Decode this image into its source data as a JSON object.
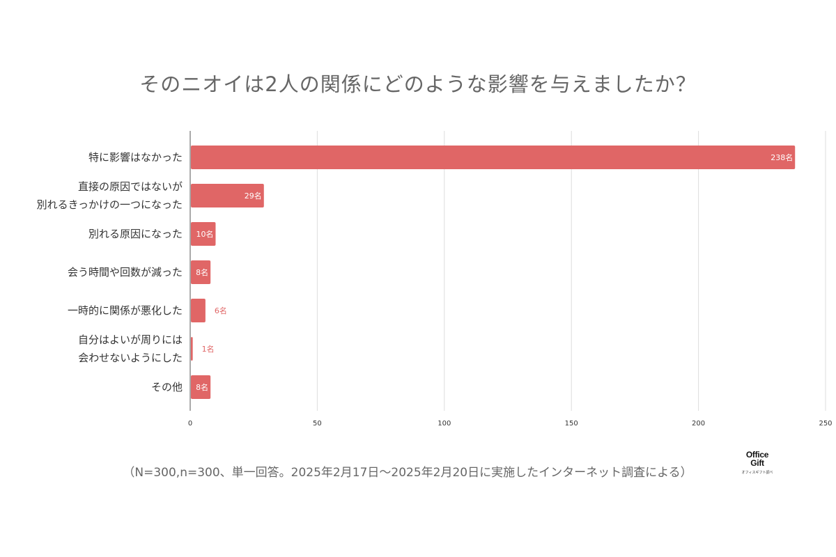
{
  "title": "そのニオイは2人の関係にどのような影響を与えましたか？",
  "footnote": "（N=300,n=300、単一回答。2025年2月17日～2025年2月20日に実施したインターネット調査による）",
  "brand": {
    "line1": "Office",
    "line2": "Gift",
    "sub": "オフィスギフト調べ"
  },
  "colors": {
    "bar": "#e06666",
    "grid": "#dddddd",
    "axis": "#555555"
  },
  "chart_data": {
    "type": "bar",
    "orientation": "horizontal",
    "title": "そのニオイは2人の関係にどのような影響を与えましたか？",
    "categories": [
      [
        "特に影響はなかった"
      ],
      [
        "直接の原因ではないが",
        "別れるきっかけの一つになった"
      ],
      [
        "別れる原因になった"
      ],
      [
        "会う時間や回数が減った"
      ],
      [
        "一時的に関係が悪化した"
      ],
      [
        "自分はよいが周りには",
        "会わせないようにした"
      ],
      [
        "その他"
      ]
    ],
    "values": [
      238,
      29,
      10,
      8,
      6,
      1,
      8
    ],
    "data_labels": [
      "238名",
      "29名",
      "10名",
      "8名",
      "6名",
      "1名",
      "8名"
    ],
    "xlim": [
      0,
      250
    ],
    "xticks": [
      0,
      50,
      100,
      150,
      200,
      250
    ],
    "grid": true,
    "legend": "none"
  }
}
